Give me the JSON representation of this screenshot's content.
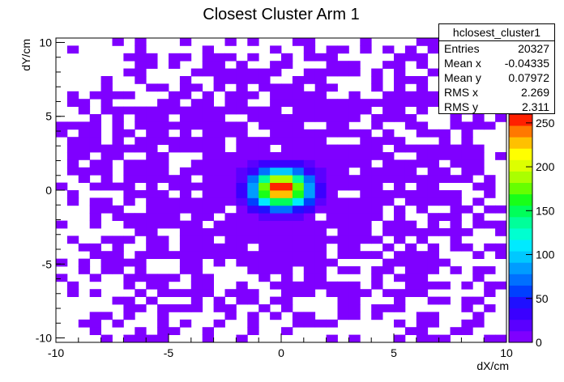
{
  "chart_data": {
    "type": "heatmap",
    "title": "Closest Cluster Arm 1",
    "xlabel": "dX/cm",
    "ylabel": "dY/cm",
    "xlim": [
      -10,
      10
    ],
    "ylim": [
      -10.3,
      10.3
    ],
    "x_ticks": [
      "-10",
      "-5",
      "0",
      "5",
      "10"
    ],
    "y_ticks": [
      "-10",
      "-5",
      "0",
      "5",
      "10"
    ],
    "z_range": [
      0,
      260
    ],
    "z_ticks": [
      "0",
      "50",
      "100",
      "150",
      "200",
      "250"
    ],
    "peak": {
      "x": 0.0,
      "y": 0.1,
      "value": 260
    },
    "spread": {
      "sigma_x": 0.85,
      "sigma_y": 0.85
    },
    "colormap": [
      "#7f00ff",
      "#5a00ff",
      "#3a00ff",
      "#1f10ff",
      "#0040ff",
      "#0070ff",
      "#009cff",
      "#00c8ff",
      "#00eaff",
      "#00ffd0",
      "#00ff9a",
      "#00ff5a",
      "#18ff18",
      "#66ff00",
      "#aaff00",
      "#ddff00",
      "#ffff00",
      "#ffc000",
      "#ff7800",
      "#ff2000"
    ]
  },
  "stats": {
    "name": "hclosest_cluster1",
    "rows": [
      {
        "label": "Entries",
        "value": "20327"
      },
      {
        "label": "Mean x",
        "value": "-0.04335"
      },
      {
        "label": "Mean y",
        "value": "0.07972"
      },
      {
        "label": "RMS x",
        "value": "2.269"
      },
      {
        "label": "RMS y",
        "value": "2.311"
      }
    ]
  }
}
